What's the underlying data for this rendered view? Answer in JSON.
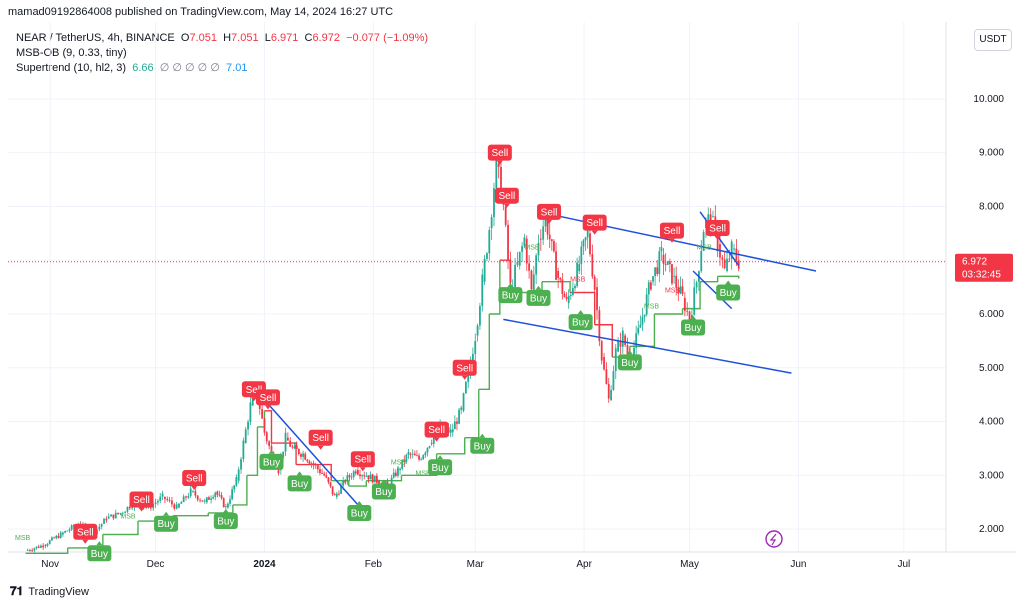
{
  "header": {
    "publish_line": "mamad09192864008 published on TradingView.com, May 14, 2024 16:27 UTC"
  },
  "legend": {
    "symbol": "NEAR / TetherUS, 4h, BINANCE",
    "open_label": "O",
    "open": "7.051",
    "high_label": "H",
    "high": "7.051",
    "low_label": "L",
    "low": "6.971",
    "close_label": "C",
    "close": "6.972",
    "change": "−0.077 (−1.09%)",
    "ind1": "MSB-OB (9, 0.33, tiny)",
    "ind2": "Supertrend (10, hl2, 3)",
    "ind2_v1": "6.66",
    "ind2_na": "∅ ∅ ∅ ∅ ∅",
    "ind2_v2": "7.01"
  },
  "currency_button": "USDT",
  "price_label": {
    "price": "6.972",
    "countdown": "03:32:45"
  },
  "footer": {
    "brand": "TradingView"
  },
  "colors": {
    "up": "#22ab94",
    "down": "#f23645",
    "trend": "#1e50dc",
    "sell": "#f23645",
    "buy": "#4caf50"
  },
  "chart_data": {
    "type": "line",
    "ylim": [
      1.5,
      10.5
    ],
    "y_ticks": [
      "10.000",
      "9.000",
      "8.000",
      "7.000",
      "6.000",
      "5.000",
      "4.000",
      "3.000",
      "2.000"
    ],
    "y_tick_values": [
      10,
      9,
      8,
      7,
      6,
      5,
      4,
      3,
      2
    ],
    "x_ticks": [
      "Nov",
      "Dec",
      "2024",
      "Feb",
      "Mar",
      "Apr",
      "May",
      "Jun",
      "Jul"
    ],
    "x_tick_days": [
      0,
      30,
      61,
      92,
      121,
      152,
      182,
      213,
      243
    ],
    "x_range_days": [
      -12,
      255
    ],
    "price_path": [
      [
        -7,
        1.6
      ],
      [
        -2,
        1.7
      ],
      [
        3,
        1.9
      ],
      [
        8,
        2.1
      ],
      [
        12,
        1.9
      ],
      [
        16,
        2.2
      ],
      [
        20,
        2.3
      ],
      [
        24,
        2.5
      ],
      [
        28,
        2.4
      ],
      [
        32,
        2.6
      ],
      [
        36,
        2.4
      ],
      [
        40,
        2.7
      ],
      [
        44,
        2.5
      ],
      [
        47,
        2.7
      ],
      [
        50,
        2.4
      ],
      [
        53,
        2.9
      ],
      [
        55,
        3.6
      ],
      [
        57,
        4.3
      ],
      [
        59,
        4.5
      ],
      [
        61,
        3.8
      ],
      [
        63,
        3.4
      ],
      [
        65,
        3.1
      ],
      [
        67,
        3.7
      ],
      [
        69,
        3.5
      ],
      [
        72,
        3.4
      ],
      [
        75,
        3.2
      ],
      [
        78,
        3.0
      ],
      [
        81,
        2.6
      ],
      [
        84,
        2.9
      ],
      [
        87,
        3.1
      ],
      [
        90,
        3.0
      ],
      [
        93,
        2.9
      ],
      [
        96,
        2.8
      ],
      [
        99,
        3.1
      ],
      [
        102,
        3.4
      ],
      [
        105,
        3.3
      ],
      [
        108,
        3.6
      ],
      [
        111,
        3.9
      ],
      [
        114,
        3.8
      ],
      [
        117,
        4.2
      ],
      [
        119,
        4.9
      ],
      [
        121,
        5.6
      ],
      [
        123,
        6.6
      ],
      [
        125,
        7.6
      ],
      [
        127,
        8.8
      ],
      [
        129,
        8.0
      ],
      [
        131,
        6.5
      ],
      [
        133,
        6.9
      ],
      [
        135,
        7.4
      ],
      [
        137,
        6.4
      ],
      [
        139,
        7.4
      ],
      [
        141,
        7.8
      ],
      [
        144,
        6.8
      ],
      [
        147,
        6.2
      ],
      [
        150,
        6.8
      ],
      [
        153,
        7.5
      ],
      [
        155,
        6.5
      ],
      [
        157,
        5.2
      ],
      [
        159,
        4.4
      ],
      [
        161,
        5.3
      ],
      [
        163,
        5.6
      ],
      [
        165,
        5.1
      ],
      [
        168,
        5.8
      ],
      [
        171,
        6.6
      ],
      [
        174,
        7.1
      ],
      [
        177,
        6.7
      ],
      [
        180,
        6.3
      ],
      [
        182,
        5.9
      ],
      [
        184,
        6.6
      ],
      [
        186,
        7.6
      ],
      [
        188,
        7.8
      ],
      [
        190,
        7.3
      ],
      [
        192,
        6.8
      ],
      [
        194,
        7.2
      ],
      [
        196,
        6.97
      ]
    ],
    "supertrend": [
      [
        -7,
        1.55
      ],
      [
        5,
        1.65
      ],
      [
        15,
        1.9
      ],
      [
        25,
        2.15
      ],
      [
        35,
        2.25
      ],
      [
        45,
        2.3
      ],
      [
        52,
        2.45
      ],
      [
        56,
        3.0
      ],
      [
        59,
        3.9
      ],
      [
        61,
        4.2
      ],
      [
        63,
        3.6
      ],
      [
        70,
        3.2
      ],
      [
        80,
        2.9
      ],
      [
        85,
        2.8
      ],
      [
        90,
        2.9
      ],
      [
        100,
        3.0
      ],
      [
        110,
        3.4
      ],
      [
        118,
        3.7
      ],
      [
        122,
        4.6
      ],
      [
        125,
        6.0
      ],
      [
        128,
        7.0
      ],
      [
        131,
        6.4
      ],
      [
        140,
        6.6
      ],
      [
        148,
        6.4
      ],
      [
        155,
        5.8
      ],
      [
        160,
        5.2
      ],
      [
        165,
        5.4
      ],
      [
        172,
        6.0
      ],
      [
        180,
        6.1
      ],
      [
        185,
        6.6
      ],
      [
        190,
        6.7
      ],
      [
        196,
        6.66
      ]
    ],
    "signals": [
      {
        "label": "Sell",
        "type": "sell",
        "day": 10,
        "price": 1.95
      },
      {
        "label": "Buy",
        "type": "buy",
        "day": 14,
        "price": 1.55
      },
      {
        "label": "Sell",
        "type": "sell",
        "day": 26,
        "price": 2.55
      },
      {
        "label": "Buy",
        "type": "buy",
        "day": 33,
        "price": 2.1
      },
      {
        "label": "Sell",
        "type": "sell",
        "day": 41,
        "price": 2.95
      },
      {
        "label": "Buy",
        "type": "buy",
        "day": 50,
        "price": 2.15
      },
      {
        "label": "Sell",
        "type": "sell",
        "day": 58,
        "price": 4.6
      },
      {
        "label": "Sell",
        "type": "sell",
        "day": 62,
        "price": 4.45
      },
      {
        "label": "Buy",
        "type": "buy",
        "day": 63,
        "price": 3.25
      },
      {
        "label": "Buy",
        "type": "buy",
        "day": 71,
        "price": 2.85
      },
      {
        "label": "Sell",
        "type": "sell",
        "day": 77,
        "price": 3.7
      },
      {
        "label": "Buy",
        "type": "buy",
        "day": 88,
        "price": 2.3
      },
      {
        "label": "Sell",
        "type": "sell",
        "day": 89,
        "price": 3.3
      },
      {
        "label": "Buy",
        "type": "buy",
        "day": 95,
        "price": 2.7
      },
      {
        "label": "Sell",
        "type": "sell",
        "day": 110,
        "price": 3.85
      },
      {
        "label": "Buy",
        "type": "buy",
        "day": 111,
        "price": 3.15
      },
      {
        "label": "Sell",
        "type": "sell",
        "day": 118,
        "price": 5.0
      },
      {
        "label": "Buy",
        "type": "buy",
        "day": 123,
        "price": 3.55
      },
      {
        "label": "Sell",
        "type": "sell",
        "day": 128,
        "price": 9.0
      },
      {
        "label": "Sell",
        "type": "sell",
        "day": 130,
        "price": 8.2
      },
      {
        "label": "Buy",
        "type": "buy",
        "day": 131,
        "price": 6.35
      },
      {
        "label": "Buy",
        "type": "buy",
        "day": 139,
        "price": 6.3
      },
      {
        "label": "Sell",
        "type": "sell",
        "day": 142,
        "price": 7.9
      },
      {
        "label": "Buy",
        "type": "buy",
        "day": 151,
        "price": 5.85
      },
      {
        "label": "Sell",
        "type": "sell",
        "day": 155,
        "price": 7.7
      },
      {
        "label": "Buy",
        "type": "buy",
        "day": 165,
        "price": 5.1
      },
      {
        "label": "Sell",
        "type": "sell",
        "day": 177,
        "price": 7.55
      },
      {
        "label": "Buy",
        "type": "buy",
        "day": 183,
        "price": 5.75
      },
      {
        "label": "Sell",
        "type": "sell",
        "day": 190,
        "price": 7.6
      },
      {
        "label": "Buy",
        "type": "buy",
        "day": 193,
        "price": 6.4
      }
    ],
    "msb_labels": [
      {
        "label": "MSB",
        "color": "up",
        "day": -10,
        "price": 1.8
      },
      {
        "label": "MSB",
        "color": "up",
        "day": 20,
        "price": 2.2
      },
      {
        "label": "MSB",
        "color": "down",
        "day": 92,
        "price": 2.65
      },
      {
        "label": "MSB",
        "color": "up",
        "day": 97,
        "price": 3.2
      },
      {
        "label": "MSB",
        "color": "up",
        "day": 104,
        "price": 3.0
      },
      {
        "label": "MSB",
        "color": "up",
        "day": 135,
        "price": 7.2
      },
      {
        "label": "MSB",
        "color": "down",
        "day": 148,
        "price": 6.6
      },
      {
        "label": "MSB",
        "color": "up",
        "day": 169,
        "price": 6.1
      },
      {
        "label": "MSB",
        "color": "down",
        "day": 175,
        "price": 6.4
      },
      {
        "label": "MSB",
        "color": "up",
        "day": 184,
        "price": 7.2
      }
    ],
    "trendlines": [
      {
        "from": [
          59,
          4.55
        ],
        "to": [
          89,
          2.35
        ]
      },
      {
        "from": [
          139,
          7.9
        ],
        "to": [
          218,
          6.8
        ]
      },
      {
        "from": [
          129,
          5.9
        ],
        "to": [
          211,
          4.9
        ]
      },
      {
        "from": [
          185,
          7.9
        ],
        "to": [
          196,
          6.9
        ]
      },
      {
        "from": [
          183,
          6.8
        ],
        "to": [
          194,
          6.1
        ]
      }
    ],
    "current_price": 6.972
  }
}
